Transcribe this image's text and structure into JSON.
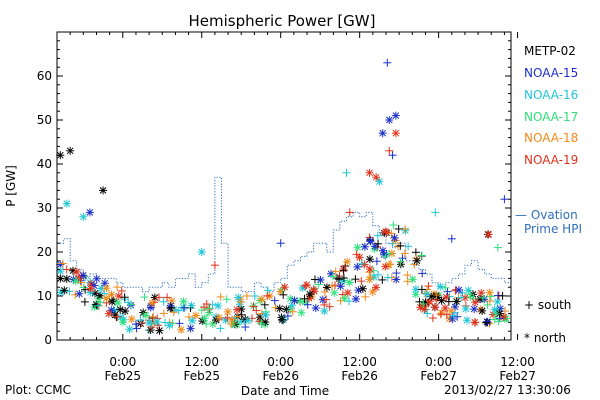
{
  "chart_data": {
    "type": "scatter",
    "title": "Hemispheric Power [GW]",
    "ylabel": "P [GW]",
    "xlabel": "Date and Time",
    "ylim": [
      0,
      70
    ],
    "yticks": [
      0,
      10,
      20,
      30,
      40,
      50,
      60
    ],
    "xlim_hours": [
      -10,
      59
    ],
    "xticks": [
      {
        "hour": 0,
        "time": "0:00",
        "date": "Feb25"
      },
      {
        "hour": 12,
        "time": "12:00",
        "date": "Feb25"
      },
      {
        "hour": 24,
        "time": "0:00",
        "date": "Feb26"
      },
      {
        "hour": 36,
        "time": "12:00",
        "date": "Feb26"
      },
      {
        "hour": 48,
        "time": "0:00",
        "date": "Feb27"
      },
      {
        "hour": 60,
        "time": "12:00",
        "date": "Feb27"
      }
    ],
    "marker_legend": {
      "south": "south",
      "north": "north"
    },
    "series": [
      {
        "name": "METP-02",
        "color": "#000000"
      },
      {
        "name": "NOAA-15",
        "color": "#1c2fc9"
      },
      {
        "name": "NOAA-16",
        "color": "#1fc6d6"
      },
      {
        "name": "NOAA-17",
        "color": "#2ee07a"
      },
      {
        "name": "NOAA-18",
        "color": "#f08a1a"
      },
      {
        "name": "NOAA-19",
        "color": "#e0321a"
      }
    ],
    "ovation": {
      "label_line1": "— Ovation",
      "label_line2": "Prime HPI",
      "color": "#2f6fbf",
      "hours": [
        -10,
        -9,
        -8,
        -7,
        -6,
        -5,
        -4,
        -3,
        -2,
        -1,
        0,
        1,
        2,
        3,
        4,
        5,
        6,
        7,
        8,
        9,
        10,
        11,
        12,
        13,
        14,
        15,
        16,
        17,
        18,
        19,
        20,
        21,
        22,
        23,
        24,
        25,
        26,
        27,
        28,
        29,
        30,
        31,
        32,
        33,
        34,
        35,
        36,
        37,
        38,
        39,
        40,
        41,
        42,
        43,
        44,
        45,
        46,
        47,
        48,
        49,
        50,
        51,
        52,
        53,
        54,
        55,
        56,
        57,
        58,
        59
      ],
      "values": [
        22,
        23,
        18,
        16,
        14,
        15,
        14,
        14,
        14,
        13,
        12,
        12,
        12,
        11,
        12,
        12,
        13,
        12,
        14,
        14,
        15,
        12,
        13,
        15,
        37,
        22,
        12,
        12,
        11,
        11,
        13,
        12,
        11,
        13,
        14,
        17,
        18,
        19,
        20,
        22,
        22,
        20,
        25,
        27,
        28,
        29,
        28,
        29,
        26,
        24,
        22,
        21,
        22,
        18,
        17,
        16,
        15,
        13,
        12,
        13,
        14,
        15,
        17,
        18,
        16,
        15,
        14,
        14,
        13,
        15
      ]
    },
    "annotations": {
      "plot_credit": "Plot: CCMC",
      "timestamp": "2013/02/27 13:30:06"
    }
  }
}
